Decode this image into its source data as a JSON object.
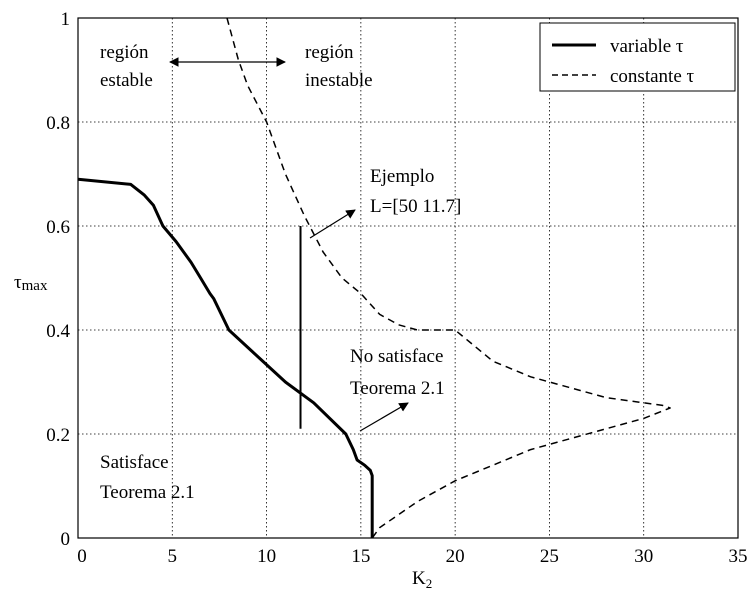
{
  "chart_data": {
    "type": "line",
    "xlabel": "K",
    "xlabel_sub": "2",
    "ylabel": "τ",
    "ylabel_sub": "max",
    "xlim": [
      0,
      35
    ],
    "ylim": [
      0,
      1
    ],
    "x_ticks": [
      0,
      5,
      10,
      15,
      20,
      25,
      30,
      35
    ],
    "y_ticks": [
      0,
      0.2,
      0.4,
      0.6,
      0.8,
      1
    ],
    "x_tick_labels": [
      "0",
      "5",
      "10",
      "15",
      "20",
      "25",
      "30",
      "35"
    ],
    "y_tick_labels": [
      "0",
      "0.2",
      "0.4",
      "0.6",
      "0.8",
      "1"
    ],
    "grid": true,
    "legend_position": "top-right",
    "series": [
      {
        "name": "variable τ",
        "style": "solid",
        "x": [
          0,
          2.8,
          3.5,
          4.0,
          4.5,
          5.2,
          6.0,
          6.5,
          7.0,
          7.2,
          8.0,
          9.5,
          11.0,
          12.5,
          14.2,
          14.6,
          14.8,
          15.2,
          15.5,
          15.6,
          15.6
        ],
        "y": [
          0.69,
          0.68,
          0.66,
          0.64,
          0.6,
          0.57,
          0.53,
          0.5,
          0.47,
          0.46,
          0.4,
          0.35,
          0.3,
          0.26,
          0.2,
          0.17,
          0.15,
          0.14,
          0.13,
          0.12,
          0.0
        ]
      },
      {
        "name": "constante τ",
        "style": "dashed",
        "x": [
          7.9,
          8.5,
          9.0,
          10.0,
          11.0,
          12.0,
          13.0,
          14.0,
          15.0,
          16.0,
          17.0,
          18.0,
          20.0,
          22.0,
          24.0,
          26.0,
          28.0,
          30.0,
          31.0,
          31.4,
          30.0,
          28.0,
          26.0,
          24.0,
          22.0,
          20.0,
          18.0,
          17.0,
          16.0,
          15.6
        ],
        "y": [
          1.0,
          0.92,
          0.87,
          0.8,
          0.7,
          0.62,
          0.55,
          0.5,
          0.47,
          0.43,
          0.41,
          0.4,
          0.4,
          0.34,
          0.31,
          0.29,
          0.27,
          0.26,
          0.255,
          0.25,
          0.23,
          0.21,
          0.19,
          0.17,
          0.14,
          0.11,
          0.07,
          0.045,
          0.02,
          0.0
        ]
      }
    ],
    "vertical_segment": {
      "x": 11.8,
      "y": [
        0.21,
        0.6
      ]
    },
    "annotations": {
      "region_stable": [
        "región",
        "estable"
      ],
      "region_unstable": [
        "región",
        "inestable"
      ],
      "example": [
        "Ejemplo",
        "L=[50  11.7]"
      ],
      "not_satisfies": [
        "No satisface",
        "Teorema 2.1"
      ],
      "satisfies": [
        "Satisface",
        "Teorema 2.1"
      ]
    }
  }
}
